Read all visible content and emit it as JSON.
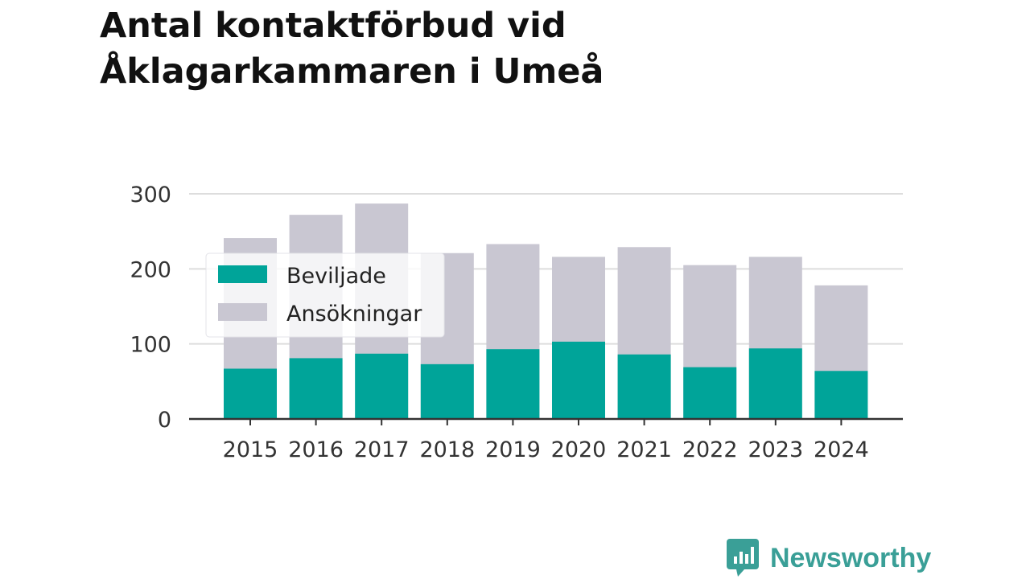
{
  "chart_data": {
    "type": "bar",
    "stacked": "overlay",
    "title_lines": [
      "Antal kontaktförbud vid",
      "Åklagarkammaren i Umeå"
    ],
    "categories": [
      "2015",
      "2016",
      "2017",
      "2018",
      "2019",
      "2020",
      "2021",
      "2022",
      "2023",
      "2024"
    ],
    "series": [
      {
        "name": "Beviljade",
        "color": "#00a499",
        "values": [
          67,
          81,
          87,
          73,
          93,
          103,
          86,
          69,
          94,
          64
        ]
      },
      {
        "name": "Ansökningar",
        "color": "#c9c7d2",
        "values": [
          241,
          272,
          287,
          221,
          233,
          216,
          229,
          205,
          216,
          178
        ]
      }
    ],
    "ylim": [
      0,
      300
    ],
    "yticks": [
      "0",
      "100",
      "200",
      "300"
    ],
    "grid": true,
    "legend_position": "upper-left, over plot"
  },
  "brand": {
    "name": "Newsworthy",
    "color": "#3a9f97"
  }
}
